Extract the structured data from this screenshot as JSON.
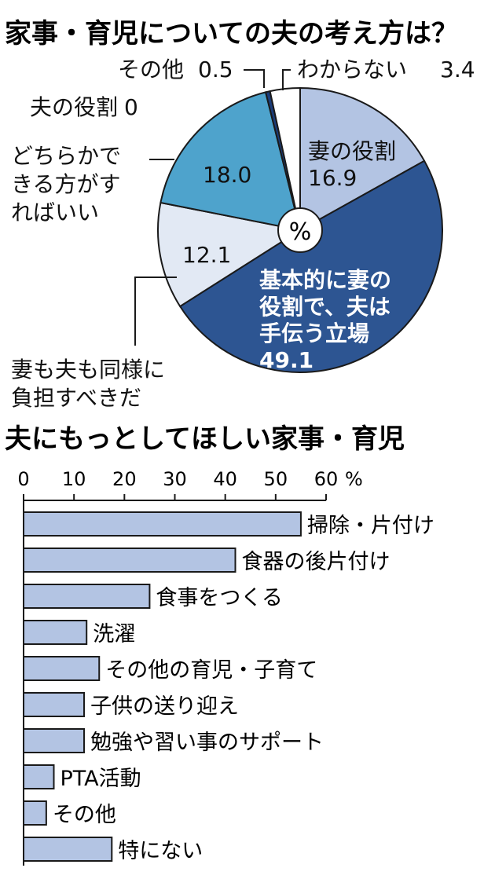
{
  "chart_data": [
    {
      "type": "pie",
      "title": "家事・育児についての夫の考え方は？",
      "unit": "%",
      "slices": [
        {
          "label": "妻の役割",
          "value": 16.9,
          "color": "#b3c4e3"
        },
        {
          "label": "基本的に妻の役割で、夫は手伝う立場",
          "value": 49.1,
          "color": "#2d5592"
        },
        {
          "label": "妻も夫も同様に負担すべきだ",
          "value": 12.1,
          "color": "#e2e9f4"
        },
        {
          "label": "どちらかできる方がすればいい",
          "value": 18.0,
          "color": "#4ea3cc"
        },
        {
          "label": "夫の役割",
          "value": 0,
          "color": "#2d5592"
        },
        {
          "label": "その他",
          "value": 0.5,
          "color": "#1b3d7a"
        },
        {
          "label": "わからない",
          "value": 3.4,
          "color": "#ffffff"
        }
      ],
      "label_lines": {
        "妻の役割": [
          "妻の役割"
        ],
        "基本的に妻の役割で、夫は手伝う立場": [
          "基本的に妻の",
          "役割で、夫は",
          "手伝う立場"
        ],
        "妻も夫も同様に負担すべきだ": [
          "妻も夫も同様に",
          "負担すべきだ"
        ],
        "どちらかできる方がすればいい": [
          "どちらかで",
          "きる方がす",
          "ればいい"
        ],
        "夫の役割": [
          "夫の役割"
        ],
        "その他": [
          "その他"
        ],
        "わからない": [
          "わからない"
        ]
      },
      "value_labels": [
        "16.9",
        "49.1",
        "12.1",
        "18.0",
        "0",
        "0.5",
        "3.4"
      ]
    },
    {
      "type": "bar",
      "orientation": "horizontal",
      "title": "夫にもっとしてほしい家事・育児",
      "categories": [
        "掃除・片付け",
        "食器の後片付け",
        "食事をつくる",
        "洗濯",
        "その他の育児・子育て",
        "子供の送り迎え",
        "勉強や習い事のサポート",
        "PTA活動",
        "その他",
        "特にない"
      ],
      "values": [
        55,
        42,
        25,
        12.5,
        15,
        12,
        12,
        6,
        4.5,
        17.5
      ],
      "xlim": [
        0,
        60
      ],
      "ticks": [
        "0",
        "10",
        "20",
        "30",
        "40",
        "50",
        "60"
      ],
      "tick_values": [
        0,
        10,
        20,
        30,
        40,
        50,
        60
      ],
      "unit": "%",
      "bar_color": "#b3c4e3"
    }
  ]
}
